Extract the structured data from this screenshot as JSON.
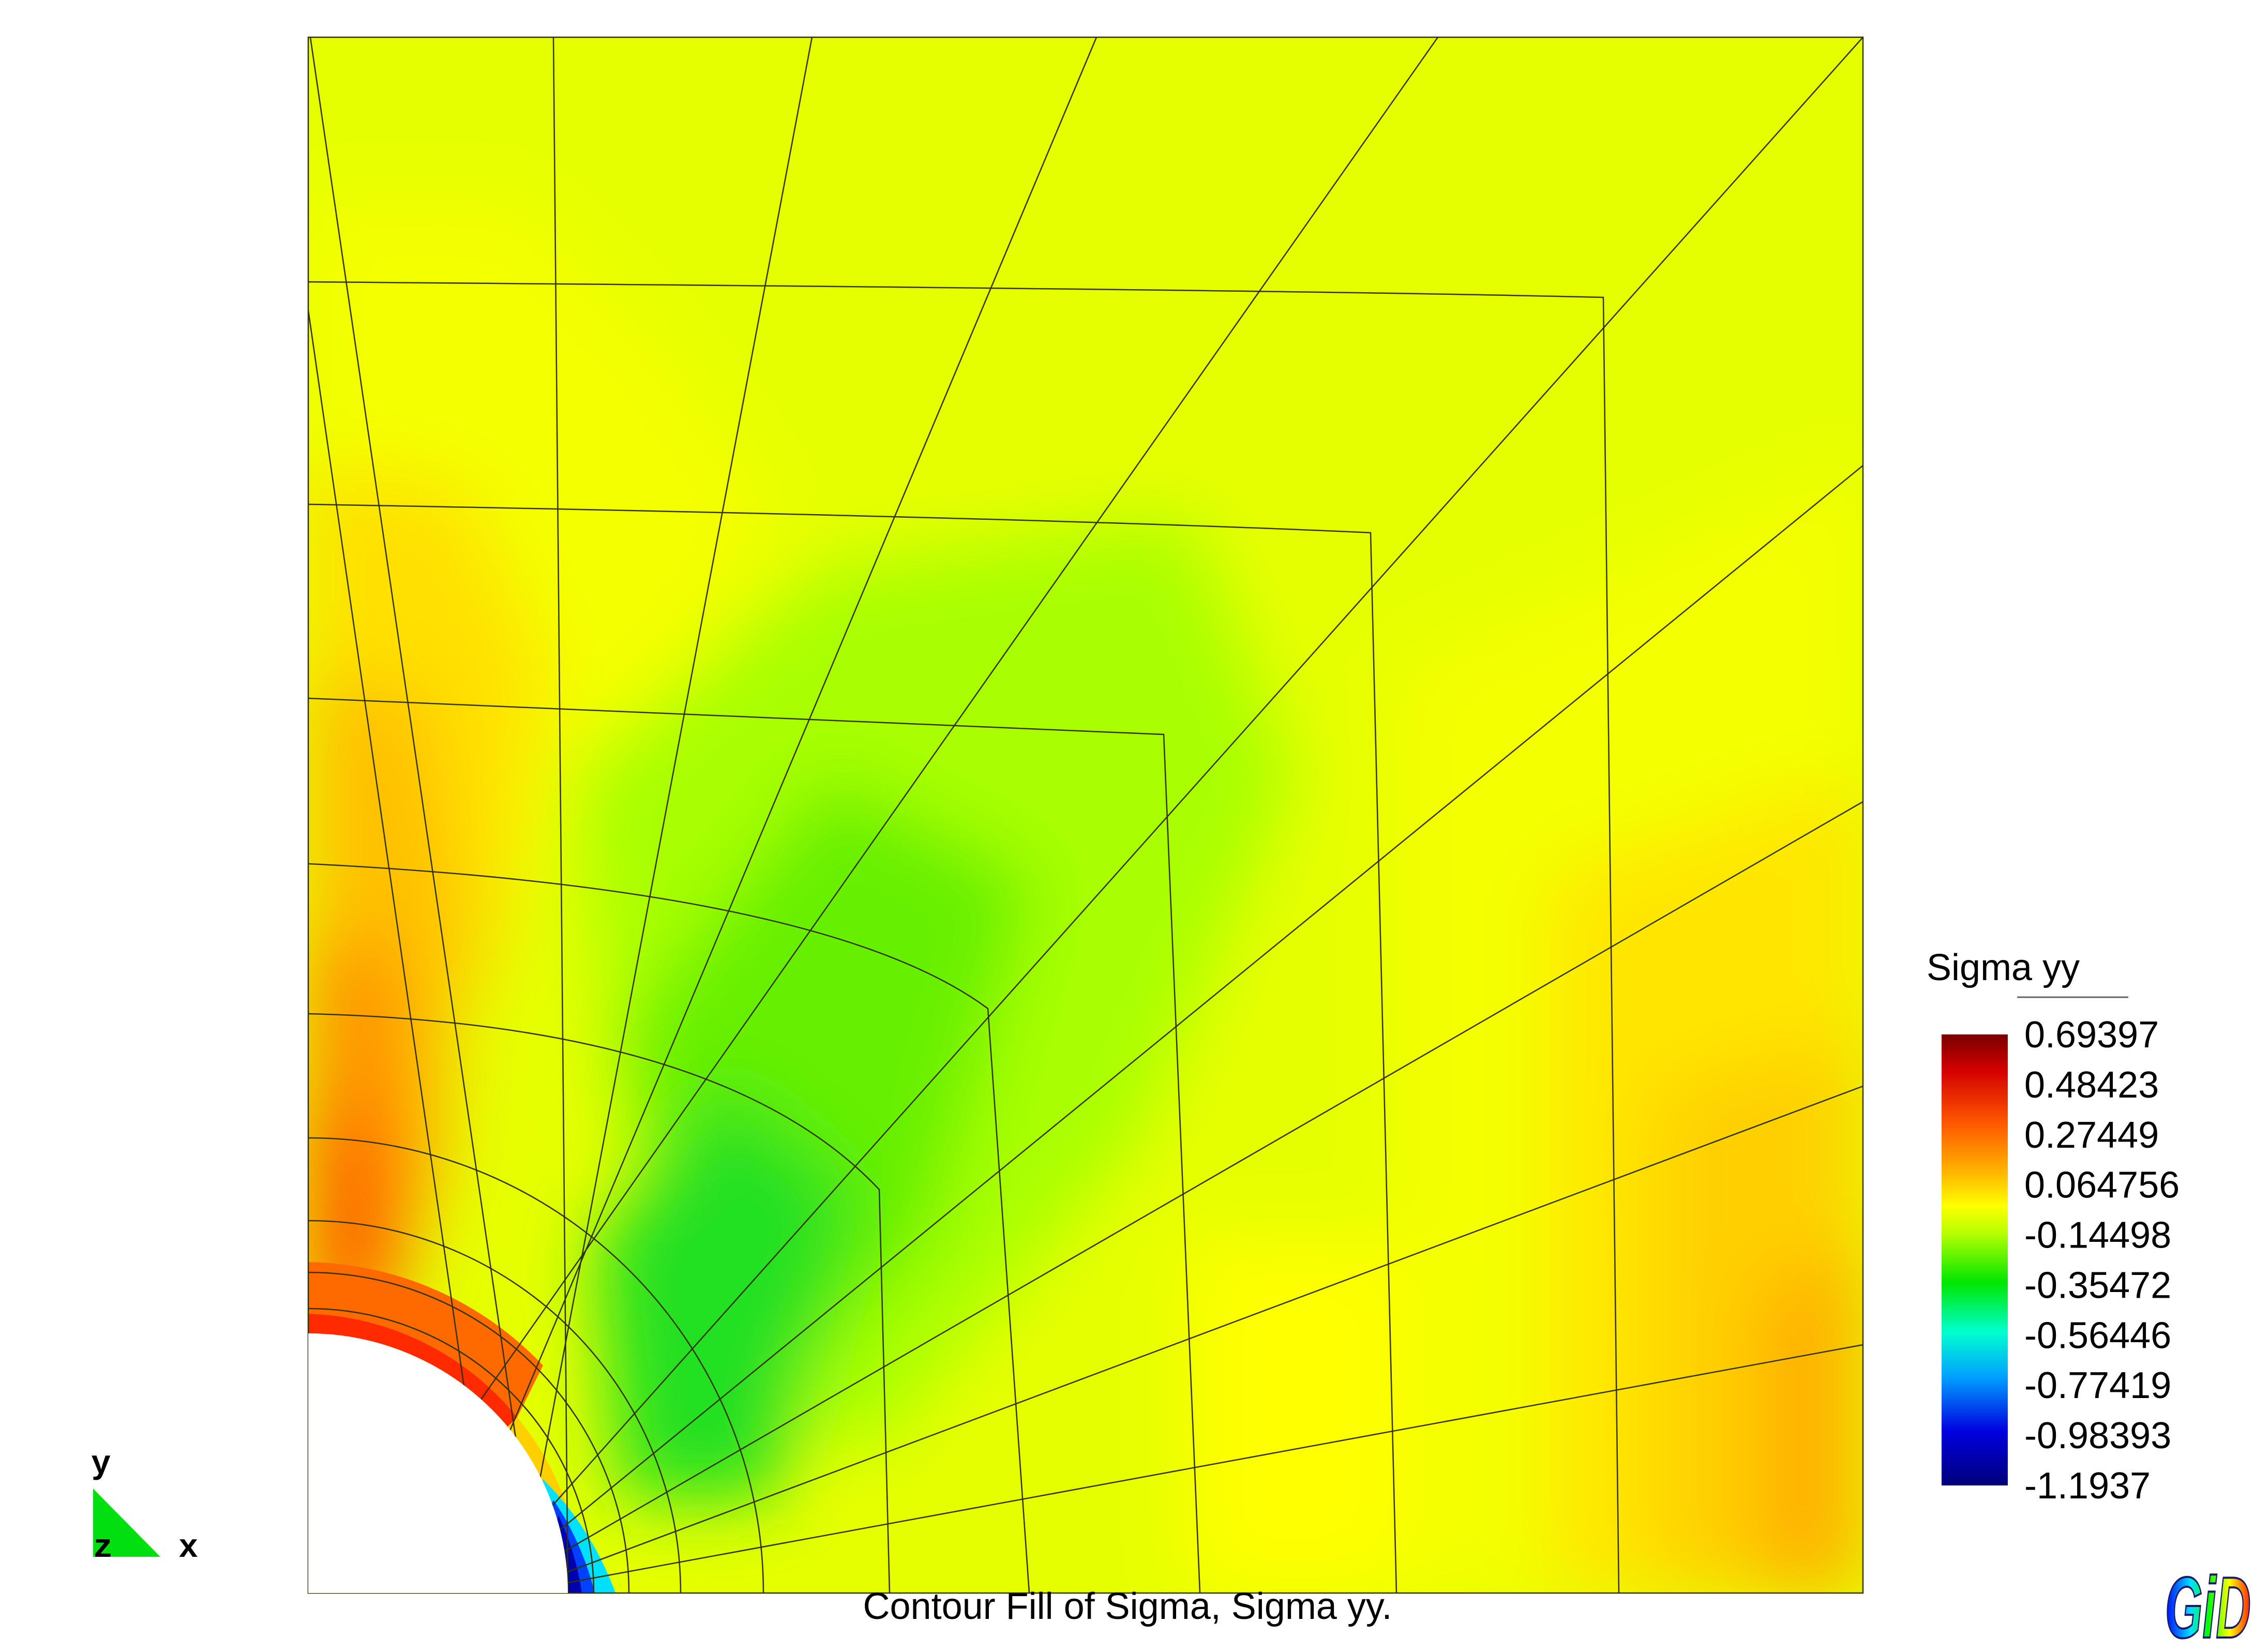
{
  "caption": "Contour Fill of Sigma, Sigma yy.",
  "legend": {
    "title": "Sigma yy",
    "values": [
      "0.69397",
      "0.48423",
      "0.27449",
      "0.064756",
      "-0.14498",
      "-0.35472",
      "-0.56446",
      "-0.77419",
      "-0.98393",
      "-1.1937"
    ]
  },
  "axes": {
    "y": "y",
    "z": "z",
    "x": "x"
  },
  "logo": {
    "text": "GiD"
  },
  "colors": {
    "mesh_line": "#333300",
    "scale_stops": [
      "#7a0000",
      "#d40000",
      "#ff5a00",
      "#ffb000",
      "#ffff00",
      "#b8ff00",
      "#00e600",
      "#00ffd0",
      "#00a0ff",
      "#0000e0",
      "#00007a"
    ]
  }
}
